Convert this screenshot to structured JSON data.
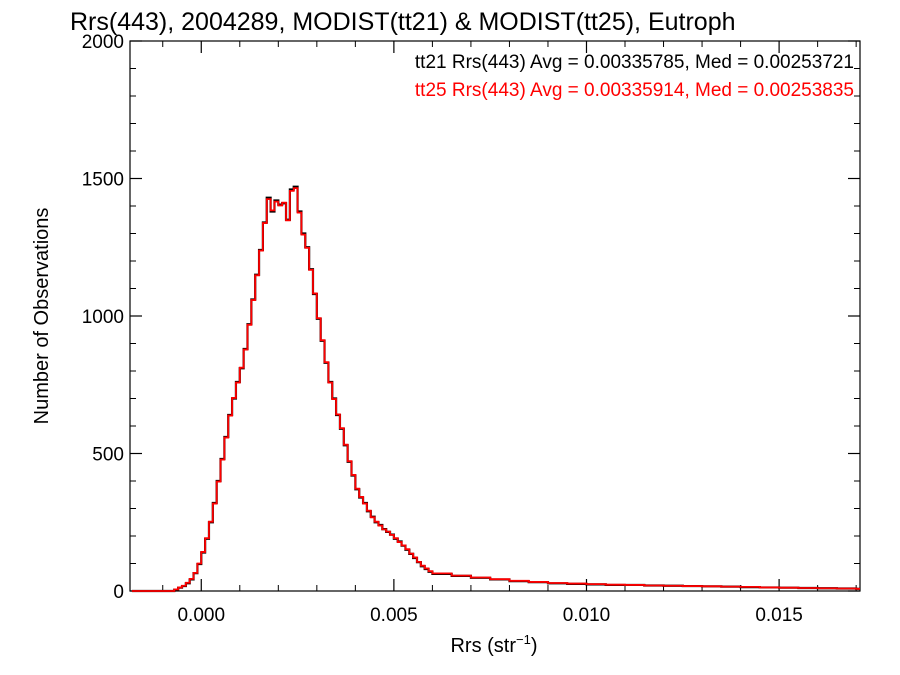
{
  "chart_data": {
    "type": "line",
    "title": "Rrs(443), 2004289, MODIST(tt21) & MODIST(tt25), Eutroph",
    "xlabel": {
      "base": "Rrs (str",
      "sup": "−1",
      "close": ")"
    },
    "ylabel": "Number of Observations",
    "xlim": [
      -0.00185,
      0.0171
    ],
    "ylim": [
      0,
      2000
    ],
    "x_ticks": [
      {
        "value": 0.0,
        "label": "0.000"
      },
      {
        "value": 0.005,
        "label": "0.005"
      },
      {
        "value": 0.01,
        "label": "0.010"
      },
      {
        "value": 0.015,
        "label": "0.015"
      }
    ],
    "y_ticks": [
      {
        "value": 0,
        "label": "0"
      },
      {
        "value": 500,
        "label": "500"
      },
      {
        "value": 1000,
        "label": "1000"
      },
      {
        "value": 1500,
        "label": "1500"
      },
      {
        "value": 2000,
        "label": "2000"
      }
    ],
    "grid": false,
    "annotations": [
      {
        "text": "tt21 Rrs(443) Avg = 0.00335785, Med = 0.00253721",
        "color": "#000000"
      },
      {
        "text": "tt25 Rrs(443) Avg = 0.00335914, Med = 0.00253835",
        "color": "#ff0000"
      }
    ],
    "series": [
      {
        "color": "#000000",
        "points": [
          [
            -0.0018,
            0
          ],
          [
            -0.0008,
            0
          ],
          [
            -0.0007,
            5
          ],
          [
            -0.0006,
            12
          ],
          [
            -0.0005,
            18
          ],
          [
            -0.0004,
            28
          ],
          [
            -0.0003,
            42
          ],
          [
            -0.0002,
            65
          ],
          [
            -0.0001,
            98
          ],
          [
            0.0,
            140
          ],
          [
            0.0001,
            190
          ],
          [
            0.0002,
            250
          ],
          [
            0.0003,
            320
          ],
          [
            0.0004,
            400
          ],
          [
            0.0005,
            480
          ],
          [
            0.0006,
            560
          ],
          [
            0.0007,
            640
          ],
          [
            0.0008,
            700
          ],
          [
            0.0009,
            760
          ],
          [
            0.001,
            810
          ],
          [
            0.0011,
            880
          ],
          [
            0.0012,
            970
          ],
          [
            0.0013,
            1060
          ],
          [
            0.0014,
            1150
          ],
          [
            0.0015,
            1240
          ],
          [
            0.0016,
            1340
          ],
          [
            0.0017,
            1430
          ],
          [
            0.0018,
            1380
          ],
          [
            0.0019,
            1420
          ],
          [
            0.002,
            1405
          ],
          [
            0.0021,
            1410
          ],
          [
            0.0022,
            1350
          ],
          [
            0.0023,
            1460
          ],
          [
            0.0024,
            1470
          ],
          [
            0.0025,
            1380
          ],
          [
            0.0026,
            1300
          ],
          [
            0.0027,
            1250
          ],
          [
            0.0028,
            1170
          ],
          [
            0.0029,
            1080
          ],
          [
            0.003,
            990
          ],
          [
            0.0031,
            910
          ],
          [
            0.0032,
            830
          ],
          [
            0.0033,
            760
          ],
          [
            0.0034,
            700
          ],
          [
            0.0035,
            640
          ],
          [
            0.0036,
            590
          ],
          [
            0.0037,
            530
          ],
          [
            0.0038,
            470
          ],
          [
            0.0039,
            420
          ],
          [
            0.004,
            370
          ],
          [
            0.0041,
            340
          ],
          [
            0.0042,
            320
          ],
          [
            0.0043,
            290
          ],
          [
            0.0044,
            270
          ],
          [
            0.0045,
            250
          ],
          [
            0.0046,
            240
          ],
          [
            0.0047,
            225
          ],
          [
            0.0048,
            215
          ],
          [
            0.0049,
            205
          ],
          [
            0.005,
            190
          ],
          [
            0.0051,
            180
          ],
          [
            0.0052,
            165
          ],
          [
            0.0053,
            150
          ],
          [
            0.0054,
            135
          ],
          [
            0.0055,
            120
          ],
          [
            0.0056,
            105
          ],
          [
            0.0057,
            90
          ],
          [
            0.0058,
            80
          ],
          [
            0.0059,
            70
          ],
          [
            0.006,
            62
          ],
          [
            0.0065,
            55
          ],
          [
            0.007,
            48
          ],
          [
            0.0075,
            42
          ],
          [
            0.008,
            36
          ],
          [
            0.0085,
            32
          ],
          [
            0.009,
            28
          ],
          [
            0.0095,
            26
          ],
          [
            0.01,
            24
          ],
          [
            0.0105,
            22
          ],
          [
            0.011,
            22
          ],
          [
            0.0115,
            20
          ],
          [
            0.012,
            19
          ],
          [
            0.0125,
            18
          ],
          [
            0.013,
            17
          ],
          [
            0.0135,
            16
          ],
          [
            0.014,
            14
          ],
          [
            0.0145,
            13
          ],
          [
            0.015,
            12
          ],
          [
            0.0155,
            11
          ],
          [
            0.016,
            10
          ],
          [
            0.0165,
            9
          ],
          [
            0.017,
            8
          ]
        ]
      },
      {
        "color": "#ff0000",
        "points": [
          [
            -0.0018,
            0
          ],
          [
            -0.0008,
            0
          ],
          [
            -0.0007,
            6
          ],
          [
            -0.0006,
            13
          ],
          [
            -0.0005,
            19
          ],
          [
            -0.0004,
            30
          ],
          [
            -0.0003,
            44
          ],
          [
            -0.0002,
            66
          ],
          [
            -0.0001,
            100
          ],
          [
            0.0,
            142
          ],
          [
            0.0001,
            192
          ],
          [
            0.0002,
            252
          ],
          [
            0.0003,
            318
          ],
          [
            0.0004,
            398
          ],
          [
            0.0005,
            478
          ],
          [
            0.0006,
            558
          ],
          [
            0.0007,
            638
          ],
          [
            0.0008,
            702
          ],
          [
            0.0009,
            758
          ],
          [
            0.001,
            812
          ],
          [
            0.0011,
            878
          ],
          [
            0.0012,
            968
          ],
          [
            0.0013,
            1058
          ],
          [
            0.0014,
            1148
          ],
          [
            0.0015,
            1238
          ],
          [
            0.0016,
            1338
          ],
          [
            0.0017,
            1425
          ],
          [
            0.0018,
            1384
          ],
          [
            0.0019,
            1416
          ],
          [
            0.002,
            1402
          ],
          [
            0.0021,
            1412
          ],
          [
            0.0022,
            1348
          ],
          [
            0.0023,
            1455
          ],
          [
            0.0024,
            1465
          ],
          [
            0.0025,
            1376
          ],
          [
            0.0026,
            1296
          ],
          [
            0.0027,
            1248
          ],
          [
            0.0028,
            1168
          ],
          [
            0.0029,
            1082
          ],
          [
            0.003,
            992
          ],
          [
            0.0031,
            912
          ],
          [
            0.0032,
            832
          ],
          [
            0.0033,
            758
          ],
          [
            0.0034,
            698
          ],
          [
            0.0035,
            642
          ],
          [
            0.0036,
            592
          ],
          [
            0.0037,
            532
          ],
          [
            0.0038,
            472
          ],
          [
            0.0039,
            422
          ],
          [
            0.004,
            372
          ],
          [
            0.0041,
            342
          ],
          [
            0.0042,
            318
          ],
          [
            0.0043,
            292
          ],
          [
            0.0044,
            268
          ],
          [
            0.0045,
            252
          ],
          [
            0.0046,
            238
          ],
          [
            0.0047,
            224
          ],
          [
            0.0048,
            216
          ],
          [
            0.0049,
            204
          ],
          [
            0.005,
            192
          ],
          [
            0.0051,
            178
          ],
          [
            0.0052,
            166
          ],
          [
            0.0053,
            152
          ],
          [
            0.0054,
            136
          ],
          [
            0.0055,
            122
          ],
          [
            0.0056,
            106
          ],
          [
            0.0057,
            92
          ],
          [
            0.0058,
            82
          ],
          [
            0.0059,
            72
          ],
          [
            0.006,
            64
          ],
          [
            0.0065,
            56
          ],
          [
            0.007,
            49
          ],
          [
            0.0075,
            43
          ],
          [
            0.008,
            37
          ],
          [
            0.0085,
            33
          ],
          [
            0.009,
            29
          ],
          [
            0.0095,
            27
          ],
          [
            0.01,
            25
          ],
          [
            0.0105,
            23
          ],
          [
            0.011,
            22
          ],
          [
            0.0115,
            20
          ],
          [
            0.012,
            19
          ],
          [
            0.0125,
            18
          ],
          [
            0.013,
            17
          ],
          [
            0.0135,
            16
          ],
          [
            0.014,
            15
          ],
          [
            0.0145,
            13
          ],
          [
            0.015,
            12
          ],
          [
            0.0155,
            11
          ],
          [
            0.016,
            10
          ],
          [
            0.0165,
            9
          ],
          [
            0.017,
            8
          ]
        ]
      }
    ]
  }
}
